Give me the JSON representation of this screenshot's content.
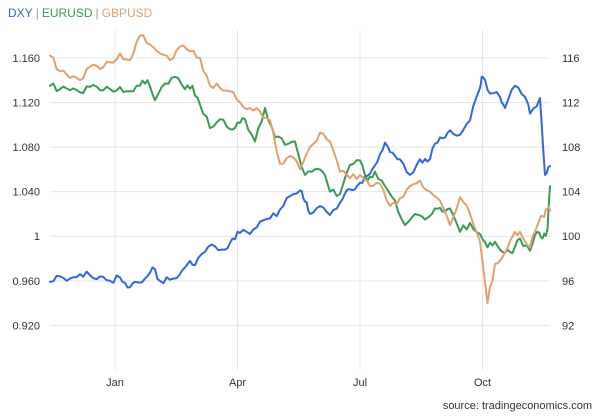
{
  "chart_data": {
    "type": "line",
    "title": "",
    "legend": [
      {
        "name": "DXY",
        "color": "#3366dd"
      },
      {
        "name": "EURUSD",
        "color": "#3a9a55"
      },
      {
        "name": "GBPUSD",
        "color": "#e0a070"
      }
    ],
    "legend_separator": "|",
    "legend_position": "top-left",
    "grid": true,
    "x_ticks": [
      "Jan",
      "Apr",
      "Jul",
      "Oct"
    ],
    "x_range": [
      0,
      100
    ],
    "x_tick_positions": [
      13,
      37.5,
      62,
      86.5
    ],
    "left_axis": {
      "ylim": [
        0.88,
        1.185
      ],
      "ticks": [
        0.92,
        0.96,
        1.0,
        1.04,
        1.08,
        1.12,
        1.16
      ],
      "tick_labels": [
        "0.920",
        "0.960",
        "1",
        "1.040",
        "1.080",
        "1.120",
        "1.160"
      ]
    },
    "right_axis": {
      "ylim": [
        88,
        118.5
      ],
      "ticks": [
        92,
        96,
        100,
        104,
        108,
        112,
        116
      ],
      "tick_labels": [
        "92",
        "96",
        "100",
        "104",
        "108",
        "112",
        "116"
      ]
    },
    "series": [
      {
        "name": "DXY",
        "axis": "right",
        "color": "#3366dd",
        "x": [
          0,
          2,
          4,
          6,
          8,
          10,
          12,
          14,
          15.5,
          17,
          19,
          20.5,
          22,
          24,
          26,
          27.5,
          29,
          31,
          33,
          35,
          36.5,
          38,
          40,
          42,
          44,
          46,
          48,
          50,
          51,
          52,
          54,
          56,
          58,
          59.5,
          61,
          62.5,
          64,
          65.5,
          67,
          68.5,
          70,
          72,
          74,
          75.5,
          77,
          78.5,
          80,
          82,
          84,
          86,
          86.5,
          88,
          90,
          91,
          93,
          95,
          96,
          98,
          99,
          100
        ],
        "y": [
          95.9,
          96.4,
          96.2,
          96.6,
          96.5,
          96.4,
          96.0,
          96.3,
          95.4,
          95.9,
          96.2,
          97.2,
          96.0,
          96.1,
          96.6,
          97.5,
          97.4,
          98.6,
          99.1,
          98.8,
          99.8,
          100.3,
          100.2,
          101.3,
          101.6,
          102.4,
          103.6,
          104.1,
          103.1,
          102.0,
          102.7,
          101.9,
          103.0,
          104.2,
          104.2,
          104.8,
          105.6,
          106.7,
          108.4,
          107.5,
          106.9,
          105.5,
          106.9,
          106.7,
          108.3,
          108.8,
          109.5,
          109.1,
          110.4,
          113.3,
          114.3,
          112.8,
          112.5,
          111.5,
          113.5,
          112.5,
          111.0,
          112.4,
          105.5,
          106.3
        ]
      },
      {
        "name": "EURUSD",
        "axis": "left",
        "color": "#3a9a55",
        "x": [
          0,
          2,
          4,
          6,
          8,
          10,
          12,
          14,
          16,
          18,
          19.5,
          21,
          23,
          25,
          27,
          28.5,
          30,
          32,
          34,
          36,
          37.5,
          39,
          41,
          43,
          45,
          47,
          49,
          51,
          53,
          54.5,
          56,
          58,
          60,
          62,
          63.5,
          65,
          67,
          69,
          71,
          73,
          75,
          77,
          78.5,
          80,
          82,
          84,
          86,
          87.5,
          89,
          91,
          92.5,
          94,
          96,
          97.5,
          98.5,
          99.5,
          100
        ],
        "y": [
          1.135,
          1.132,
          1.131,
          1.129,
          1.134,
          1.131,
          1.132,
          1.134,
          1.13,
          1.135,
          1.14,
          1.122,
          1.137,
          1.143,
          1.132,
          1.135,
          1.118,
          1.097,
          1.105,
          1.096,
          1.102,
          1.105,
          1.085,
          1.115,
          1.089,
          1.082,
          1.085,
          1.055,
          1.06,
          1.058,
          1.04,
          1.038,
          1.064,
          1.068,
          1.05,
          1.058,
          1.045,
          1.032,
          1.01,
          1.02,
          1.015,
          1.025,
          1.022,
          1.025,
          1.004,
          1.012,
          1.002,
          0.99,
          0.995,
          0.985,
          0.985,
          0.998,
          0.987,
          1.004,
          0.998,
          1.006,
          1.045
        ]
      },
      {
        "name": "GBPUSD",
        "axis": "left",
        "color": "#e0a070",
        "x": [
          0,
          2,
          4,
          6,
          8,
          10,
          12,
          14,
          16,
          18,
          20,
          22,
          24,
          26,
          28,
          30,
          32,
          34,
          36,
          38,
          40,
          42,
          44,
          46,
          48,
          50,
          52,
          54,
          56,
          58,
          60,
          62,
          64,
          66,
          68,
          70,
          72,
          74,
          76,
          78,
          80,
          82,
          84,
          86,
          87.5,
          89,
          91,
          92.5,
          94,
          96,
          97.5,
          98.5,
          99.5,
          100
        ],
        "y": [
          1.162,
          1.148,
          1.142,
          1.14,
          1.152,
          1.15,
          1.156,
          1.164,
          1.158,
          1.18,
          1.172,
          1.164,
          1.158,
          1.17,
          1.166,
          1.16,
          1.135,
          1.133,
          1.13,
          1.12,
          1.115,
          1.112,
          1.104,
          1.065,
          1.072,
          1.06,
          1.08,
          1.093,
          1.085,
          1.058,
          1.052,
          1.055,
          1.045,
          1.047,
          1.027,
          1.034,
          1.045,
          1.05,
          1.04,
          1.032,
          1.01,
          1.035,
          1.02,
          0.995,
          0.94,
          0.975,
          0.985,
          1.0,
          1.004,
          0.99,
          1.01,
          1.018,
          1.025,
          1.023
        ]
      }
    ]
  },
  "source": "source: tradingeconomics.com"
}
